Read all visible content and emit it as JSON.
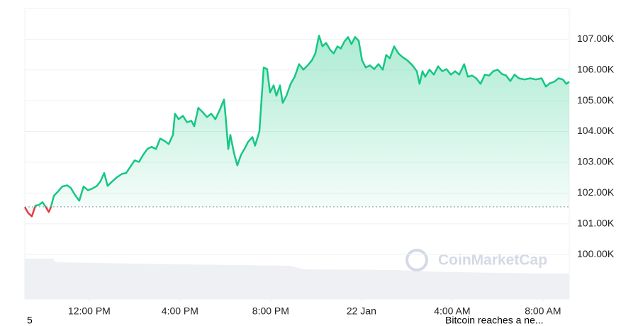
{
  "chart_data": {
    "type": "line",
    "x": [
      9.16,
      9.31,
      9.47,
      9.63,
      9.78,
      9.94,
      10.09,
      10.22,
      10.31,
      10.44,
      10.63,
      10.81,
      11.03,
      11.19,
      11.38,
      11.56,
      11.75,
      11.94,
      12.13,
      12.34,
      12.5,
      12.66,
      12.81,
      13.0,
      13.22,
      13.44,
      13.63,
      13.81,
      14.0,
      14.19,
      14.38,
      14.56,
      14.75,
      14.94,
      15.13,
      15.31,
      15.5,
      15.69,
      15.78,
      15.94,
      16.13,
      16.31,
      16.5,
      16.63,
      16.81,
      17.0,
      17.19,
      17.38,
      17.56,
      17.75,
      17.94,
      18.0,
      18.13,
      18.22,
      18.38,
      18.53,
      18.69,
      18.84,
      19.0,
      19.19,
      19.31,
      19.5,
      19.69,
      19.84,
      19.97,
      20.13,
      20.25,
      20.41,
      20.53,
      20.69,
      20.88,
      21.06,
      21.25,
      21.44,
      21.63,
      21.81,
      21.97,
      22.13,
      22.28,
      22.44,
      22.63,
      22.78,
      22.94,
      23.09,
      23.25,
      23.41,
      23.56,
      23.72,
      23.88,
      24.03,
      24.19,
      24.38,
      24.56,
      24.75,
      24.94,
      25.09,
      25.25,
      25.44,
      25.63,
      25.81,
      26.03,
      26.25,
      26.44,
      26.56,
      26.69,
      26.81,
      27.0,
      27.19,
      27.38,
      27.56,
      27.75,
      27.94,
      28.13,
      28.31,
      28.53,
      28.69,
      28.88,
      29.06,
      29.25,
      29.44,
      29.63,
      29.81,
      30.0,
      30.19,
      30.38,
      30.56,
      30.75,
      30.94,
      31.19,
      31.44,
      31.69,
      31.94,
      32.13,
      32.31,
      32.5,
      32.69,
      32.88,
      33.03,
      33.16
    ],
    "series": [
      {
        "values": [
          101.54,
          101.35,
          101.24,
          101.59,
          101.61,
          101.7,
          101.54,
          101.38,
          101.54,
          101.91,
          102.05,
          102.21,
          102.25,
          102.16,
          101.93,
          101.75,
          102.21,
          102.09,
          102.14,
          102.23,
          102.39,
          102.65,
          102.23,
          102.37,
          102.51,
          102.62,
          102.65,
          102.85,
          103.06,
          103.01,
          103.24,
          103.43,
          103.5,
          103.43,
          103.77,
          103.7,
          103.59,
          103.89,
          104.58,
          104.4,
          104.51,
          104.3,
          104.35,
          104.17,
          104.77,
          104.63,
          104.47,
          104.58,
          104.4,
          104.7,
          105.04,
          104.58,
          103.43,
          103.89,
          103.31,
          102.9,
          103.24,
          103.43,
          103.66,
          103.82,
          103.54,
          104.0,
          106.08,
          106.03,
          105.27,
          105.5,
          105.16,
          105.5,
          104.93,
          105.16,
          105.55,
          105.78,
          106.19,
          106.01,
          106.15,
          106.31,
          106.54,
          107.12,
          106.77,
          106.88,
          106.65,
          106.54,
          106.77,
          106.7,
          106.93,
          107.07,
          106.84,
          107.07,
          106.95,
          106.31,
          106.08,
          106.15,
          106.03,
          106.19,
          106.01,
          106.49,
          106.38,
          106.77,
          106.54,
          106.42,
          106.31,
          106.15,
          105.96,
          105.55,
          105.96,
          105.78,
          106.01,
          105.85,
          106.12,
          105.96,
          106.03,
          105.85,
          105.96,
          105.85,
          106.19,
          105.78,
          105.82,
          105.73,
          105.55,
          105.85,
          105.82,
          105.96,
          106.01,
          105.87,
          105.82,
          105.64,
          105.85,
          105.73,
          105.69,
          105.73,
          105.69,
          105.73,
          105.46,
          105.57,
          105.62,
          105.73,
          105.69,
          105.55,
          105.62
        ],
        "color": "#16c784",
        "color_below": "#ea3943"
      }
    ],
    "baseline": 101.55,
    "xlim": [
      9.16,
      33.16
    ],
    "xticks": [
      {
        "value": 12,
        "label": "12:00 PM"
      },
      {
        "value": 16,
        "label": "4:00 PM"
      },
      {
        "value": 20,
        "label": "8:00 PM"
      },
      {
        "value": 24,
        "label": "22 Jan"
      },
      {
        "value": 28,
        "label": "4:00 AM"
      },
      {
        "value": 32,
        "label": "8:00 AM"
      }
    ],
    "ylim": [
      98.55,
      108
    ],
    "yticks": [
      {
        "value": 100,
        "label": "100.00K"
      },
      {
        "value": 101,
        "label": "101.00K"
      },
      {
        "value": 102,
        "label": "102.00K"
      },
      {
        "value": 103,
        "label": "103.00K"
      },
      {
        "value": 104,
        "label": "104.00K"
      },
      {
        "value": 105,
        "label": "105.00K"
      },
      {
        "value": 106,
        "label": "106.00K"
      },
      {
        "value": 107,
        "label": "107.00K"
      }
    ],
    "grid": true,
    "watermark": "CoinMarketCap",
    "annotations": [
      "5",
      "Bitcoin reaches a ne..."
    ]
  }
}
